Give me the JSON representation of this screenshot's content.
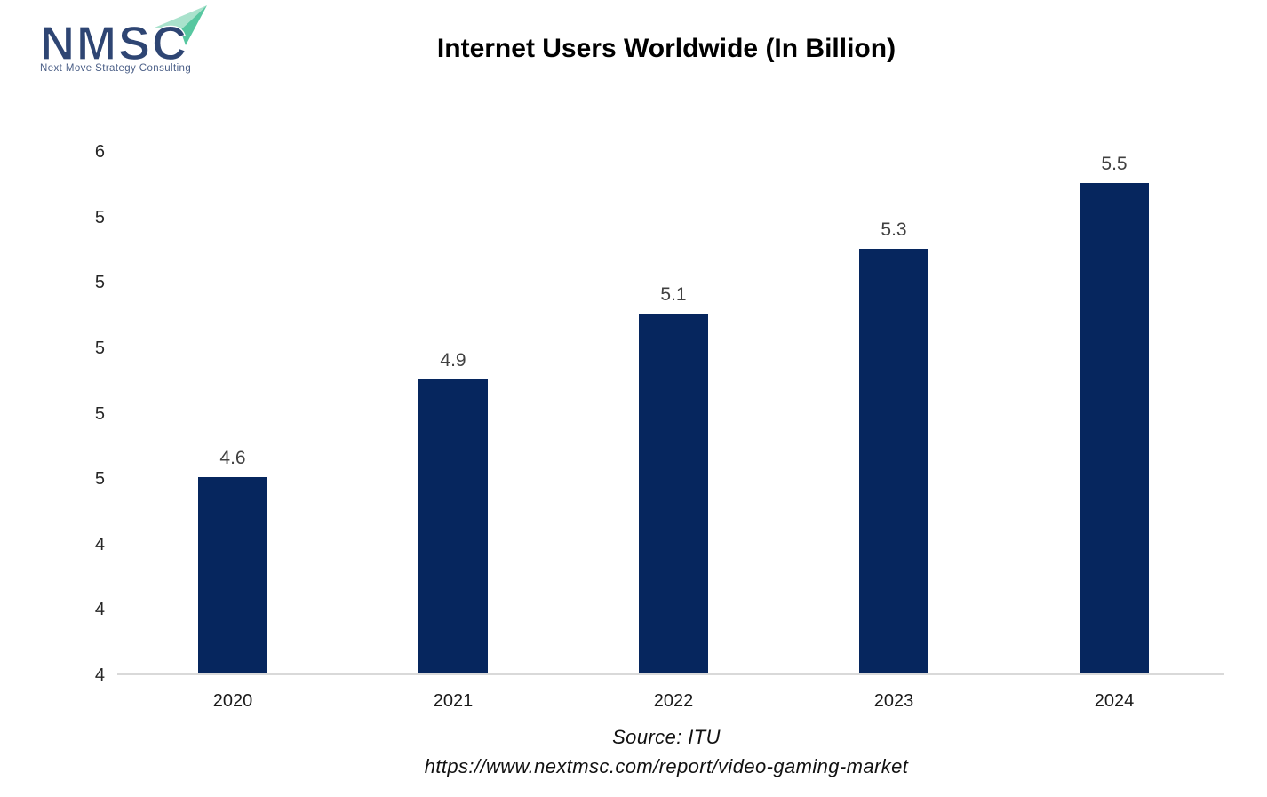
{
  "brand": {
    "logo_acronym": "NMSC",
    "logo_tagline": "Next Move Strategy Consulting",
    "logo_letter_color": "#2e4573",
    "logo_tagline_color": "#4b5f87",
    "logo_plane_light": "#a9e2cc",
    "logo_plane_dark": "#57c7a0"
  },
  "header": {
    "title": "Internet Users Worldwide (In Billion)"
  },
  "footer": {
    "source_line": "Source: ITU",
    "url_line": "https://www.nextmsc.com/report/video-gaming-market"
  },
  "chart_data": {
    "type": "bar",
    "title": "Internet Users Worldwide (In Billion)",
    "categories": [
      "2020",
      "2021",
      "2022",
      "2023",
      "2024"
    ],
    "values": [
      4.6,
      4.9,
      5.1,
      5.3,
      5.5
    ],
    "data_labels": [
      "4.6",
      "4.9",
      "5.1",
      "5.3",
      "5.5"
    ],
    "unit": "billion",
    "xlabel": "",
    "ylabel": "",
    "ylim": [
      4.0,
      5.6
    ],
    "ytick_step": 0.2,
    "yticks": [
      {
        "value": 4.0,
        "label": "4"
      },
      {
        "value": 4.2,
        "label": "4"
      },
      {
        "value": 4.4,
        "label": "4"
      },
      {
        "value": 4.6,
        "label": "5"
      },
      {
        "value": 4.8,
        "label": "5"
      },
      {
        "value": 5.0,
        "label": "5"
      },
      {
        "value": 5.2,
        "label": "5"
      },
      {
        "value": 5.4,
        "label": "5"
      },
      {
        "value": 5.6,
        "label": "6"
      }
    ],
    "grid": false,
    "legend": false,
    "bar_color": "#06265e",
    "value_label_color": "#404040",
    "ytick_label_color": "#262626",
    "xtick_label_color": "#1a1a1a",
    "axis_line_color": "#d9d9d9"
  }
}
